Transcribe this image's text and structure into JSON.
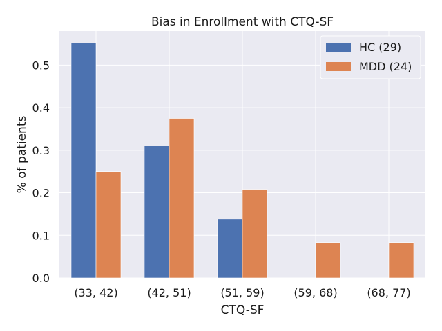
{
  "chart_data": {
    "type": "bar",
    "title": "Bias in Enrollment with CTQ-SF",
    "xlabel": "CTQ-SF",
    "ylabel": "% of patients",
    "categories": [
      "(33, 42)",
      "(42, 51)",
      "(51, 59)",
      "(59, 68)",
      "(68, 77)"
    ],
    "series": [
      {
        "name": "HC (29)",
        "values": [
          0.552,
          0.31,
          0.138,
          0.0,
          0.0
        ],
        "color": "#4c72b0"
      },
      {
        "name": "MDD (24)",
        "values": [
          0.25,
          0.375,
          0.208,
          0.083,
          0.083
        ],
        "color": "#dd8452"
      }
    ],
    "ylim": [
      0,
      0.58
    ],
    "yticks": [
      "0.0",
      "0.1",
      "0.2",
      "0.3",
      "0.4",
      "0.5"
    ],
    "grid": true,
    "legend": "top-right",
    "colors": {
      "background": "#eaeaf2",
      "grid": "#ffffff"
    }
  }
}
